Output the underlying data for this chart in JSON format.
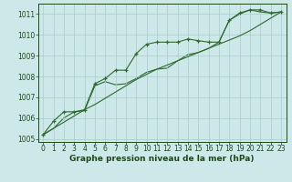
{
  "title": "Graphe pression niveau de la mer (hPa)",
  "hours": [
    0,
    1,
    2,
    3,
    4,
    5,
    6,
    7,
    8,
    9,
    10,
    11,
    12,
    13,
    14,
    15,
    16,
    17,
    18,
    19,
    20,
    21,
    22,
    23
  ],
  "series_marked": [
    1005.2,
    1005.85,
    1006.3,
    1006.3,
    1006.4,
    1007.65,
    1007.9,
    1008.3,
    1008.3,
    1009.1,
    1009.55,
    1009.65,
    1009.65,
    1009.65,
    1009.8,
    1009.72,
    1009.65,
    1009.65,
    1010.7,
    1011.05,
    1011.2,
    1011.2,
    1011.05,
    1011.1
  ],
  "series_straight": [
    1005.2,
    1005.5,
    1005.8,
    1006.1,
    1006.4,
    1006.65,
    1006.95,
    1007.25,
    1007.55,
    1007.85,
    1008.1,
    1008.35,
    1008.55,
    1008.75,
    1008.95,
    1009.15,
    1009.35,
    1009.55,
    1009.75,
    1009.95,
    1010.2,
    1010.5,
    1010.8,
    1011.1
  ],
  "series_wavy": [
    1005.2,
    1005.5,
    1006.0,
    1006.3,
    1006.35,
    1007.55,
    1007.75,
    1007.6,
    1007.65,
    1007.9,
    1008.2,
    1008.35,
    1008.4,
    1008.75,
    1009.05,
    1009.15,
    1009.35,
    1009.65,
    1010.7,
    1011.0,
    1011.2,
    1011.1,
    1011.05,
    1011.1
  ],
  "ylim": [
    1004.85,
    1011.5
  ],
  "yticks": [
    1005,
    1006,
    1007,
    1008,
    1009,
    1010,
    1011
  ],
  "line_color": "#2d6a2d",
  "bg_color": "#cde8e8",
  "grid_color": "#a8cccc",
  "label_color": "#1a4a1a",
  "tick_fontsize": 5.5,
  "xlabel_fontsize": 6.5
}
